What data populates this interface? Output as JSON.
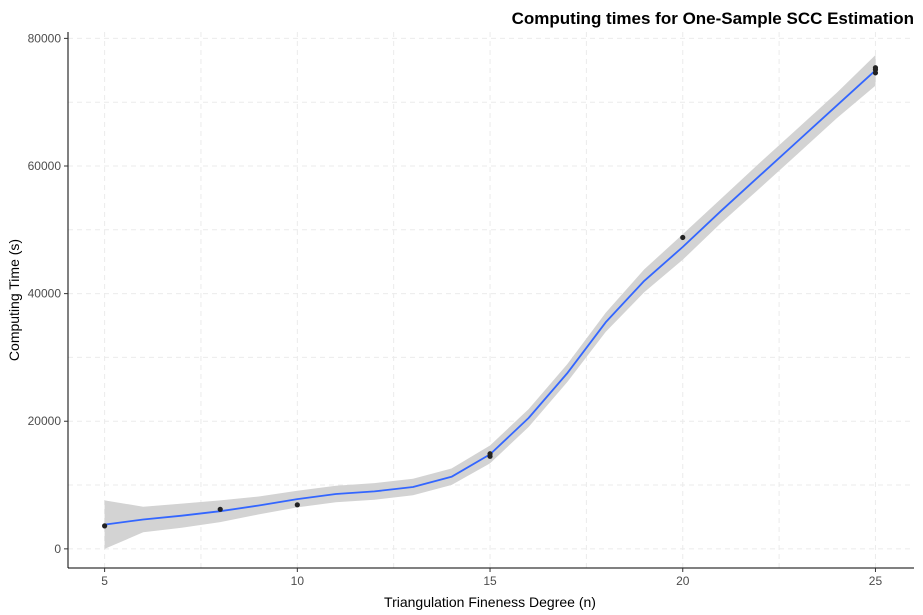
{
  "chart_data": {
    "type": "scatter",
    "title": "Computing times for One-Sample SCC Estimation",
    "xlabel": "Triangulation Fineness Degree (n)",
    "ylabel": "Computing Time (s)",
    "xlim": [
      4.05,
      26.0
    ],
    "ylim": [
      -3000,
      81000
    ],
    "x_ticks": [
      5,
      10,
      15,
      20,
      25
    ],
    "x_tick_labels": [
      "5",
      "10",
      "15",
      "20",
      "25"
    ],
    "y_ticks": [
      0,
      20000,
      40000,
      60000,
      80000
    ],
    "y_tick_labels": [
      "0",
      "20000",
      "40000",
      "60000",
      "80000"
    ],
    "x_minor_ticks": [
      7.5,
      12.5,
      17.5,
      22.5
    ],
    "y_minor_ticks": [
      10000,
      30000,
      50000,
      70000
    ],
    "grid": true,
    "legend": "none",
    "colors": {
      "points": "#222222",
      "smooth_line": "#3366ff",
      "confidence_band": "#d3d3d3"
    },
    "points": [
      {
        "x": 5,
        "y": 3600
      },
      {
        "x": 8,
        "y": 6200
      },
      {
        "x": 10,
        "y": 6900
      },
      {
        "x": 15,
        "y": 14500
      },
      {
        "x": 15,
        "y": 14900
      },
      {
        "x": 20,
        "y": 48800
      },
      {
        "x": 25,
        "y": 74600
      },
      {
        "x": 25,
        "y": 75100
      },
      {
        "x": 25,
        "y": 75400
      }
    ],
    "smooth": {
      "x": [
        5,
        6,
        7,
        8,
        9,
        10,
        11,
        12,
        13,
        14,
        15,
        16,
        17,
        18,
        19,
        20,
        21,
        22,
        23,
        24,
        25
      ],
      "y": [
        3800,
        4600,
        5200,
        5900,
        6800,
        7800,
        8600,
        9000,
        9700,
        11300,
        14800,
        20500,
        27500,
        35500,
        42000,
        47300,
        53000,
        58500,
        64000,
        69500,
        75000
      ],
      "lower": [
        0,
        2600,
        3300,
        4200,
        5400,
        6500,
        7300,
        7700,
        8400,
        10000,
        13400,
        19100,
        26100,
        34000,
        40200,
        45300,
        51100,
        56500,
        62000,
        67500,
        72600
      ],
      "upper": [
        7600,
        6600,
        7100,
        7600,
        8200,
        9100,
        9900,
        10300,
        11000,
        12600,
        16200,
        21900,
        28900,
        37000,
        43800,
        49300,
        54900,
        60500,
        66000,
        71500,
        77400
      ]
    }
  }
}
